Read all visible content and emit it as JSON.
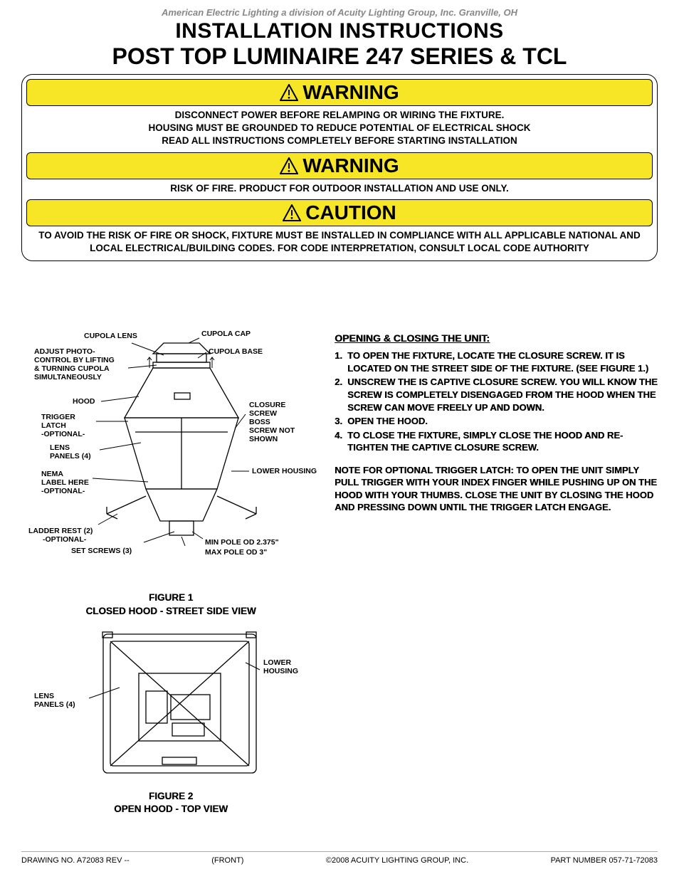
{
  "company_line": "American Electric Lighting a division of Acuity Lighting Group, Inc. Granville, OH",
  "title": "INSTALLATION INSTRUCTIONS",
  "subtitle": "POST TOP LUMINAIRE 247 SERIES & TCL",
  "warnings": {
    "bar1": "WARNING",
    "text1": "DISCONNECT POWER BEFORE RELAMPING OR WIRING THE FIXTURE.\nHOUSING MUST BE GROUNDED TO REDUCE POTENTIAL OF ELECTRICAL SHOCK\nREAD ALL INSTRUCTIONS COMPLETELY BEFORE STARTING INSTALLATION",
    "bar2": "WARNING",
    "text2": "RISK OF FIRE. PRODUCT FOR OUTDOOR INSTALLATION AND USE ONLY.",
    "bar3": "CAUTION",
    "text3": "TO AVOID THE RISK OF FIRE OR SHOCK, FIXTURE MUST BE INSTALLED IN COMPLIANCE WITH ALL APPLICABLE NATIONAL AND LOCAL ELECTRICAL/BUILDING CODES. FOR CODE INTERPRETATION, CONSULT LOCAL CODE AUTHORITY",
    "bar_bg": "#f7e626"
  },
  "instructions": {
    "heading": "OPENING & CLOSING THE UNIT:",
    "steps": [
      "TO OPEN THE FIXTURE, LOCATE THE CLOSURE SCREW. IT IS LOCATED ON THE STREET SIDE OF THE FIXTURE. (SEE FIGURE 1.)",
      "UNSCREW THE IS CAPTIVE CLOSURE SCREW. YOU WILL KNOW THE SCREW IS COMPLETELY DISENGAGED FROM THE HOOD WHEN THE SCREW CAN MOVE FREELY UP AND DOWN.",
      "OPEN THE HOOD.",
      "TO CLOSE THE FIXTURE, SIMPLY CLOSE THE HOOD AND RE-TIGHTEN THE CAPTIVE CLOSURE SCREW."
    ],
    "note": "NOTE FOR OPTIONAL TRIGGER LATCH: TO OPEN THE UNIT SIMPLY PULL TRIGGER WITH YOUR INDEX FINGER WHILE PUSHING UP ON THE HOOD WITH YOUR THUMBS. CLOSE THE UNIT BY CLOSING THE HOOD AND PRESSING DOWN UNTIL THE TRIGGER LATCH ENGAGE."
  },
  "figure1": {
    "caption_line1": "FIGURE 1",
    "caption_line2": "CLOSED HOOD - STREET SIDE VIEW",
    "labels": {
      "cupola_cap": "CUPOLA CAP",
      "cupola_lens": "CUPOLA LENS",
      "cupola_base": "CUPOLA BASE",
      "adjust": "ADJUST PHOTO-\nCONTROL BY LIFTING\n& TURNING CUPOLA\nSIMULTANEOUSLY",
      "hood": "HOOD",
      "closure": "CLOSURE\nSCREW\nBOSS\nSCREW NOT\nSHOWN",
      "trigger": "TRIGGER\nLATCH\n-OPTIONAL-",
      "lens_panels": "LENS\nPANELS (4)",
      "lower_housing": "LOWER HOUSING",
      "nema": "NEMA\nLABEL HERE\n-OPTIONAL-",
      "ladder": "LADDER REST (2)\n-OPTIONAL-",
      "set_screws": "SET SCREWS (3)",
      "min_pole": "MIN POLE OD 2.375\"",
      "max_pole": "MAX POLE OD 3\""
    }
  },
  "figure2": {
    "caption_line1": "FIGURE 2",
    "caption_line2": "OPEN HOOD - TOP VIEW",
    "labels": {
      "lens_panels": "LENS\nPANELS (4)",
      "lower_housing": "LOWER\nHOUSING"
    }
  },
  "footer": {
    "left": "DRAWING NO. A72083  REV --",
    "center_left": "(FRONT)",
    "center": "©2008 ACUITY LIGHTING GROUP, INC.",
    "right": "PART NUMBER 057-71-72083"
  }
}
